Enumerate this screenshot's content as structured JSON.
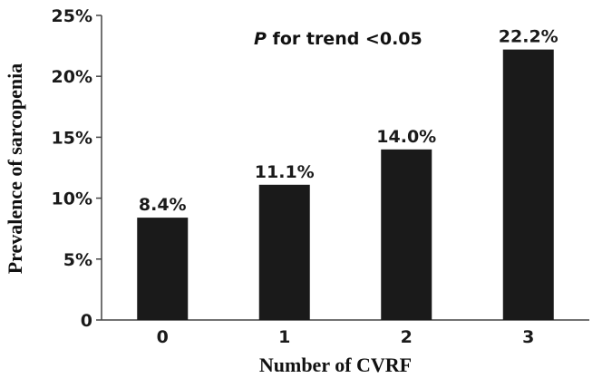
{
  "chart_data": {
    "type": "bar",
    "categories": [
      "0",
      "1",
      "2",
      "3"
    ],
    "values": [
      8.4,
      11.1,
      14.0,
      22.2
    ],
    "data_labels": [
      "8.4%",
      "11.1%",
      "14.0%",
      "22.2%"
    ],
    "xlabel": "Number of CVRF",
    "ylabel": "Prevalence of sarcopenia",
    "ylim": [
      0,
      25
    ],
    "yticks": [
      0,
      5,
      10,
      15,
      20,
      25
    ],
    "ytick_labels": [
      "0",
      "5%",
      "10%",
      "15%",
      "20%",
      "25%"
    ],
    "annotation": {
      "italic": "P",
      "text": " for trend <0.05"
    },
    "bar_color": "#1a1a1a",
    "grid": false,
    "legend": "none"
  }
}
